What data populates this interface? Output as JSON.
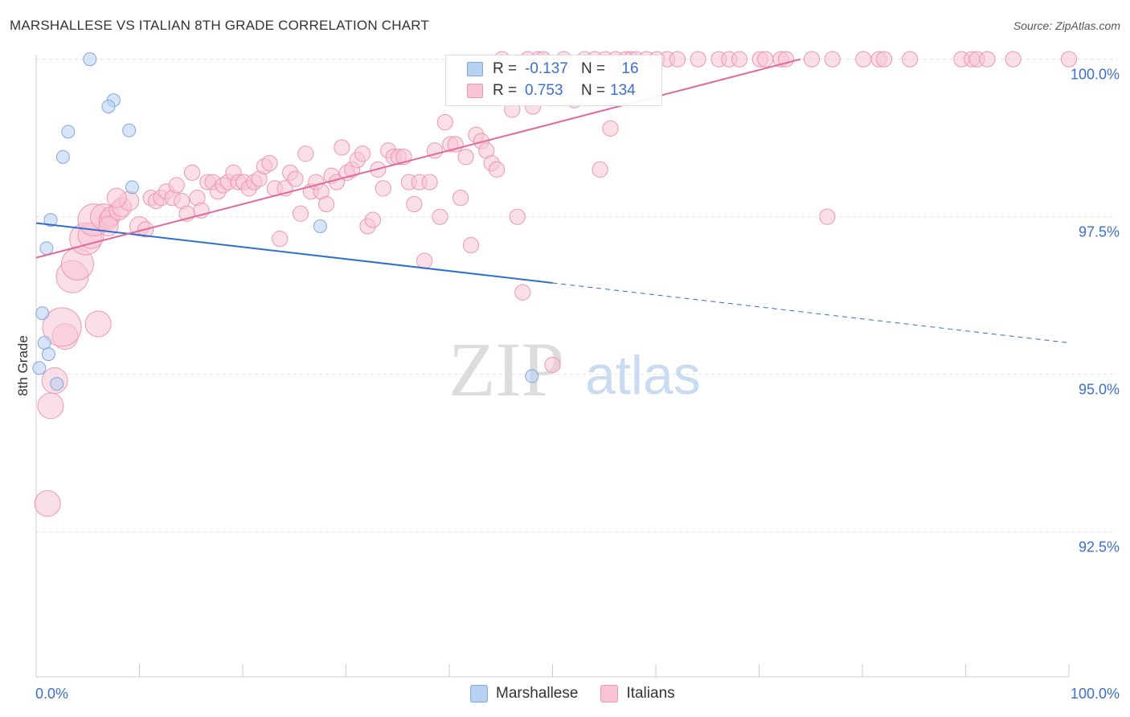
{
  "title": "MARSHALLESE VS ITALIAN 8TH GRADE CORRELATION CHART",
  "source": "Source: ZipAtlas.com",
  "watermark": {
    "zip": "ZIP",
    "atlas": "atlas"
  },
  "legend": {
    "rows": [
      {
        "r_label": "R =",
        "r_value": "-0.137",
        "n_label": "N =",
        "n_value": "16"
      },
      {
        "r_label": "R =",
        "r_value": "0.753",
        "n_label": "N =",
        "n_value": "134"
      }
    ]
  },
  "bottom_legend": {
    "marshallese": "Marshallese",
    "italians": "Italians"
  },
  "colors": {
    "marshallese_fill": "#b8d0f2",
    "marshallese_stroke": "#7fa6e0",
    "marshallese_line": "#2d6fd0",
    "italians_fill": "#f8c4d4",
    "italians_stroke": "#ee96b2",
    "italians_line": "#e0689a",
    "tick_label": "#3a6fd0",
    "grid": "#e2e2e2"
  },
  "chart_data": {
    "type": "scatter",
    "title": "MARSHALLESE VS ITALIAN 8TH GRADE CORRELATION CHART",
    "xlabel": "",
    "ylabel": "8th Grade",
    "xlim": [
      0,
      100
    ],
    "ylim": [
      90.2,
      100.2
    ],
    "x_tick_labels": [
      "0.0%",
      "100.0%"
    ],
    "y_ticks": [
      {
        "value": 100.0,
        "label": "100.0%"
      },
      {
        "value": 97.5,
        "label": "97.5%"
      },
      {
        "value": 95.0,
        "label": "95.0%"
      },
      {
        "value": 92.5,
        "label": "92.5%"
      }
    ],
    "grid": true,
    "legend_position": "top-center",
    "series": [
      {
        "name": "Marshallese",
        "r": -0.137,
        "n": 16,
        "trend": {
          "x0": 0,
          "y0": 97.4,
          "x1": 50,
          "y1": 96.45,
          "dashed_to_x": 100,
          "dashed_to_y": 95.5
        },
        "points": [
          [
            5.2,
            100.0,
            1
          ],
          [
            7.5,
            99.35,
            1
          ],
          [
            7.0,
            99.25,
            1
          ],
          [
            3.1,
            98.85,
            1
          ],
          [
            9.0,
            98.87,
            1
          ],
          [
            2.6,
            98.45,
            1
          ],
          [
            9.3,
            97.97,
            1
          ],
          [
            1.4,
            97.45,
            1
          ],
          [
            27.5,
            97.35,
            1
          ],
          [
            1.0,
            97.0,
            1
          ],
          [
            0.6,
            95.97,
            1
          ],
          [
            0.8,
            95.5,
            1
          ],
          [
            1.2,
            95.32,
            1
          ],
          [
            0.3,
            95.1,
            1
          ],
          [
            2.0,
            94.85,
            1
          ],
          [
            48.0,
            94.97,
            1
          ]
        ]
      },
      {
        "name": "Italians",
        "r": 0.753,
        "n": 134,
        "trend": {
          "x0": 0,
          "y0": 96.85,
          "x1": 74,
          "y1": 100.0
        },
        "points": [
          [
            1.1,
            92.95,
            2
          ],
          [
            1.4,
            94.5,
            2
          ],
          [
            1.8,
            94.9,
            2
          ],
          [
            2.8,
            95.6,
            2
          ],
          [
            2.5,
            95.75,
            3
          ],
          [
            6.0,
            95.8,
            2
          ],
          [
            3.5,
            96.55,
            2.5
          ],
          [
            4.0,
            96.75,
            2.5
          ],
          [
            4.8,
            97.15,
            2.5
          ],
          [
            5.3,
            97.2,
            2
          ],
          [
            5.6,
            97.45,
            2.5
          ],
          [
            6.5,
            97.5,
            2
          ],
          [
            7.0,
            97.45,
            1.5
          ],
          [
            7.2,
            97.5,
            1.5
          ],
          [
            7.0,
            97.35,
            1.5
          ],
          [
            8.0,
            97.6,
            1.5
          ],
          [
            8.3,
            97.65,
            1.5
          ],
          [
            9.0,
            97.75,
            1.5
          ],
          [
            7.8,
            97.8,
            1.5
          ],
          [
            10.0,
            97.35,
            1.5
          ],
          [
            10.6,
            97.3,
            1.2
          ],
          [
            11.1,
            97.8,
            1.2
          ],
          [
            11.6,
            97.75,
            1.2
          ],
          [
            12.1,
            97.8,
            1.2
          ],
          [
            12.6,
            97.9,
            1.2
          ],
          [
            13.2,
            97.8,
            1.2
          ],
          [
            13.6,
            98.0,
            1.2
          ],
          [
            14.1,
            97.75,
            1.2
          ],
          [
            14.6,
            97.55,
            1.2
          ],
          [
            15.1,
            98.2,
            1.2
          ],
          [
            15.6,
            97.8,
            1.2
          ],
          [
            16.0,
            97.6,
            1.2
          ],
          [
            16.6,
            98.05,
            1.2
          ],
          [
            17.1,
            98.05,
            1.2
          ],
          [
            17.6,
            97.9,
            1.2
          ],
          [
            18.1,
            98.0,
            1.2
          ],
          [
            18.6,
            98.05,
            1.2
          ],
          [
            19.1,
            98.2,
            1.2
          ],
          [
            19.6,
            98.05,
            1.2
          ],
          [
            20.1,
            98.05,
            1.2
          ],
          [
            20.6,
            97.95,
            1.2
          ],
          [
            21.1,
            98.05,
            1.2
          ],
          [
            21.6,
            98.1,
            1.2
          ],
          [
            22.1,
            98.3,
            1.2
          ],
          [
            22.6,
            98.35,
            1.2
          ],
          [
            23.1,
            97.95,
            1.2
          ],
          [
            23.6,
            97.15,
            1.2
          ],
          [
            24.1,
            97.95,
            1.2
          ],
          [
            24.6,
            98.2,
            1.2
          ],
          [
            25.1,
            98.1,
            1.2
          ],
          [
            25.6,
            97.55,
            1.2
          ],
          [
            26.1,
            98.5,
            1.2
          ],
          [
            26.6,
            97.9,
            1.2
          ],
          [
            27.1,
            98.05,
            1.2
          ],
          [
            27.6,
            97.9,
            1.2
          ],
          [
            28.1,
            97.7,
            1.2
          ],
          [
            28.6,
            98.15,
            1.2
          ],
          [
            29.1,
            98.05,
            1.2
          ],
          [
            29.6,
            98.6,
            1.2
          ],
          [
            30.1,
            98.2,
            1.2
          ],
          [
            30.6,
            98.25,
            1.2
          ],
          [
            31.1,
            98.4,
            1.2
          ],
          [
            31.6,
            98.5,
            1.2
          ],
          [
            32.1,
            97.35,
            1.2
          ],
          [
            32.6,
            97.45,
            1.2
          ],
          [
            33.1,
            98.25,
            1.2
          ],
          [
            33.6,
            97.95,
            1.2
          ],
          [
            34.1,
            98.55,
            1.2
          ],
          [
            34.6,
            98.45,
            1.2
          ],
          [
            35.1,
            98.45,
            1.2
          ],
          [
            35.6,
            98.45,
            1.2
          ],
          [
            36.1,
            98.05,
            1.2
          ],
          [
            36.6,
            97.7,
            1.2
          ],
          [
            37.1,
            98.05,
            1.2
          ],
          [
            37.6,
            96.8,
            1.2
          ],
          [
            38.1,
            98.05,
            1.2
          ],
          [
            38.6,
            98.55,
            1.2
          ],
          [
            39.1,
            97.5,
            1.2
          ],
          [
            39.6,
            99.0,
            1.2
          ],
          [
            40.1,
            98.65,
            1.2
          ],
          [
            40.6,
            98.65,
            1.2
          ],
          [
            41.1,
            97.8,
            1.2
          ],
          [
            41.6,
            98.45,
            1.2
          ],
          [
            42.1,
            97.05,
            1.2
          ],
          [
            42.6,
            98.8,
            1.2
          ],
          [
            43.1,
            98.7,
            1.2
          ],
          [
            43.6,
            98.55,
            1.2
          ],
          [
            44.1,
            98.35,
            1.2
          ],
          [
            44.6,
            98.25,
            1.2
          ],
          [
            45.1,
            100.0,
            1.2
          ],
          [
            46.1,
            99.2,
            1.2
          ],
          [
            46.6,
            97.5,
            1.2
          ],
          [
            47.1,
            96.3,
            1.2
          ],
          [
            47.6,
            100.0,
            1.2
          ],
          [
            48.1,
            99.25,
            1.2
          ],
          [
            48.6,
            100.0,
            1.2
          ],
          [
            49.1,
            100.0,
            1.2
          ],
          [
            50.0,
            95.15,
            1.2
          ],
          [
            51.1,
            100.0,
            1.2
          ],
          [
            52.1,
            99.35,
            1.2
          ],
          [
            53.1,
            100.0,
            1.2
          ],
          [
            54.1,
            100.0,
            1.2
          ],
          [
            54.6,
            98.25,
            1.2
          ],
          [
            55.1,
            100.0,
            1.2
          ],
          [
            55.6,
            98.9,
            1.2
          ],
          [
            56.1,
            100.0,
            1.2
          ],
          [
            57.1,
            100.0,
            1.2
          ],
          [
            57.6,
            100.0,
            1.2
          ],
          [
            58.1,
            100.0,
            1.2
          ],
          [
            59.1,
            100.0,
            1.2
          ],
          [
            60.1,
            100.0,
            1.2
          ],
          [
            61.1,
            100.0,
            1.2
          ],
          [
            62.1,
            100.0,
            1.2
          ],
          [
            64.1,
            100.0,
            1.2
          ],
          [
            66.1,
            100.0,
            1.2
          ],
          [
            67.1,
            100.0,
            1.2
          ],
          [
            68.1,
            100.0,
            1.2
          ],
          [
            70.1,
            100.0,
            1.2
          ],
          [
            70.6,
            100.0,
            1.2
          ],
          [
            72.1,
            100.0,
            1.2
          ],
          [
            72.6,
            100.0,
            1.2
          ],
          [
            75.1,
            100.0,
            1.2
          ],
          [
            76.6,
            97.5,
            1.2
          ],
          [
            77.1,
            100.0,
            1.2
          ],
          [
            80.1,
            100.0,
            1.2
          ],
          [
            81.6,
            100.0,
            1.2
          ],
          [
            82.1,
            100.0,
            1.2
          ],
          [
            84.6,
            100.0,
            1.2
          ],
          [
            89.6,
            100.0,
            1.2
          ],
          [
            90.6,
            100.0,
            1.2
          ],
          [
            91.1,
            100.0,
            1.2
          ],
          [
            92.1,
            100.0,
            1.2
          ],
          [
            94.6,
            100.0,
            1.2
          ],
          [
            100.0,
            100.0,
            1.2
          ]
        ]
      }
    ]
  }
}
